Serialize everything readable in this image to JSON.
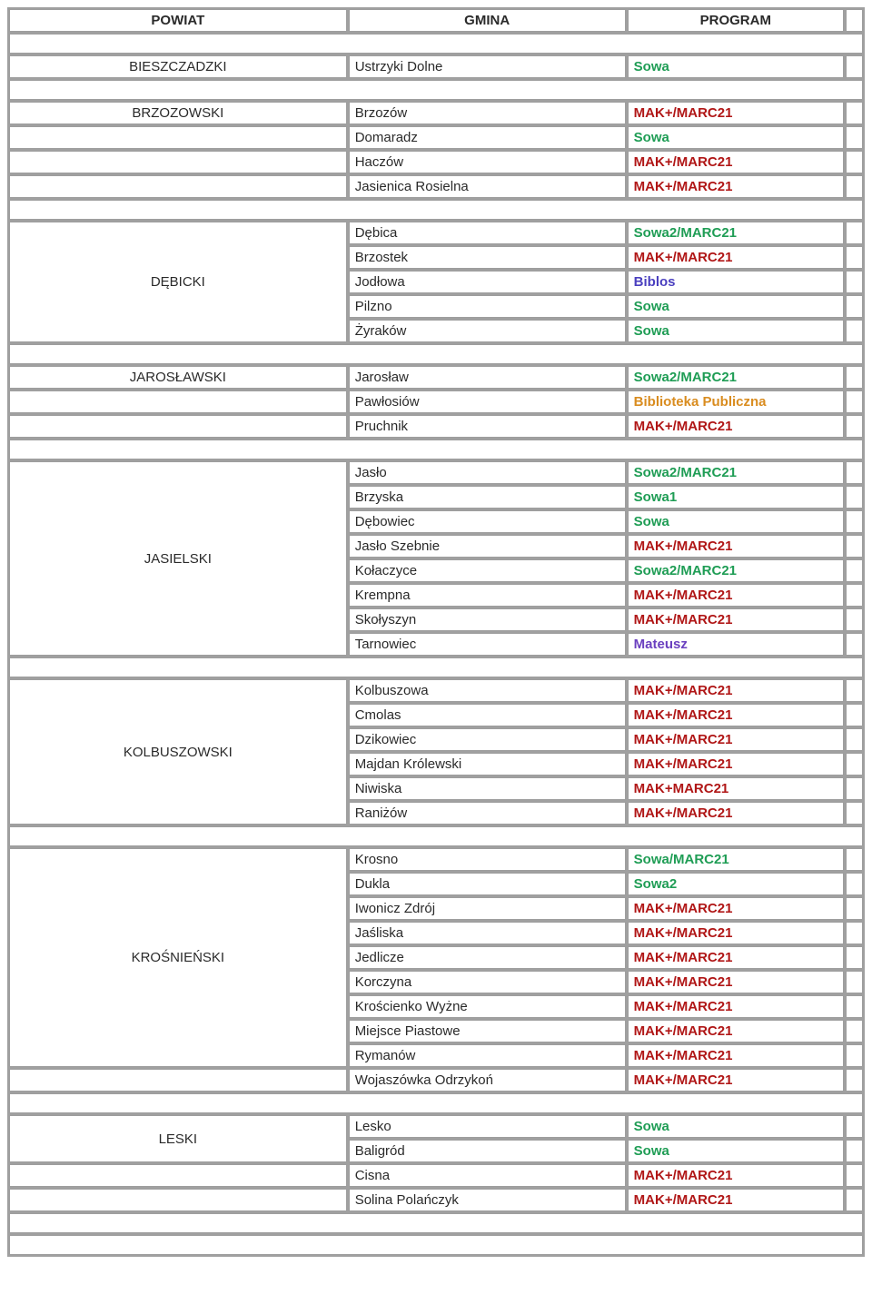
{
  "headers": {
    "powiat": "POWIAT",
    "gmina": "GMINA",
    "program": "PROGRAM"
  },
  "program_colors": {
    "sowa": "#1f9d55",
    "mak": "#b01616",
    "biblos": "#4a3fbf",
    "mateusz": "#6a3fbf",
    "biblioteka": "#d98c1f"
  },
  "groups": [
    {
      "powiat": "BIESZCZADZKI",
      "powiat_span": 1,
      "trailing_blank_powiat_rows": 0,
      "rows": [
        {
          "gmina": "Ustrzyki Dolne",
          "program": "Sowa",
          "color_key": "sowa"
        }
      ]
    },
    {
      "powiat": "BRZOZOWSKI",
      "powiat_span": 1,
      "trailing_blank_powiat_rows": 3,
      "rows": [
        {
          "gmina": "Brzozów",
          "program": "MAK+/MARC21",
          "color_key": "mak"
        },
        {
          "gmina": "Domaradz",
          "program": "Sowa",
          "color_key": "sowa"
        },
        {
          "gmina": "Haczów",
          "program": "MAK+/MARC21",
          "color_key": "mak"
        },
        {
          "gmina": "Jasienica Rosielna",
          "program": "MAK+/MARC21",
          "color_key": "mak"
        }
      ]
    },
    {
      "powiat": "DĘBICKI",
      "powiat_span": 5,
      "trailing_blank_powiat_rows": 0,
      "rows": [
        {
          "gmina": "Dębica",
          "program": "Sowa2/MARC21",
          "color_key": "sowa"
        },
        {
          "gmina": "Brzostek",
          "program": "MAK+/MARC21",
          "color_key": "mak"
        },
        {
          "gmina": "Jodłowa",
          "program": "Biblos",
          "color_key": "biblos"
        },
        {
          "gmina": "Pilzno",
          "program": "Sowa",
          "color_key": "sowa"
        },
        {
          "gmina": "Żyraków",
          "program": "Sowa",
          "color_key": "sowa"
        }
      ]
    },
    {
      "powiat": "JAROSŁAWSKI",
      "powiat_span": 1,
      "trailing_blank_powiat_rows": 2,
      "special_padding_rows": [
        1
      ],
      "rows": [
        {
          "gmina": "Jarosław",
          "program": "Sowa2/MARC21",
          "color_key": "sowa"
        },
        {
          "gmina": "Pawłosiów",
          "program": "Biblioteka Publiczna",
          "color_key": "biblioteka"
        },
        {
          "gmina": "Pruchnik",
          "program": "MAK+/MARC21",
          "color_key": "mak"
        }
      ]
    },
    {
      "powiat": "JASIELSKI",
      "powiat_span": 8,
      "trailing_blank_powiat_rows": 0,
      "rows": [
        {
          "gmina": "Jasło",
          "program": "Sowa2/MARC21",
          "color_key": "sowa"
        },
        {
          "gmina": "Brzyska",
          "program": "Sowa1",
          "color_key": "sowa"
        },
        {
          "gmina": "Dębowiec",
          "program": "Sowa",
          "color_key": "sowa"
        },
        {
          "gmina": "Jasło Szebnie",
          "program": "MAK+/MARC21",
          "color_key": "mak"
        },
        {
          "gmina": "Kołaczyce",
          "program": "Sowa2/MARC21",
          "color_key": "sowa"
        },
        {
          "gmina": "Krempna",
          "program": "MAK+/MARC21",
          "color_key": "mak"
        },
        {
          "gmina": "Skołyszyn",
          "program": "MAK+/MARC21",
          "color_key": "mak"
        },
        {
          "gmina": "Tarnowiec",
          "program": "Mateusz",
          "color_key": "mateusz"
        }
      ]
    },
    {
      "powiat": "KOLBUSZOWSKI",
      "powiat_span": 6,
      "trailing_blank_powiat_rows": 0,
      "rows": [
        {
          "gmina": "Kolbuszowa",
          "program": "MAK+/MARC21",
          "color_key": "mak"
        },
        {
          "gmina": "Cmolas",
          "program": "MAK+/MARC21",
          "color_key": "mak"
        },
        {
          "gmina": "Dzikowiec",
          "program": "MAK+/MARC21",
          "color_key": "mak"
        },
        {
          "gmina": "Majdan Królewski",
          "program": "MAK+/MARC21",
          "color_key": "mak"
        },
        {
          "gmina": "Niwiska",
          "program": "MAK+MARC21",
          "color_key": "mak"
        },
        {
          "gmina": "Raniżów",
          "program": "MAK+/MARC21",
          "color_key": "mak"
        }
      ]
    },
    {
      "powiat": "KROŚNIEŃSKI",
      "powiat_span": 9,
      "trailing_blank_powiat_rows": 1,
      "rows": [
        {
          "gmina": "Krosno",
          "program": "Sowa/MARC21",
          "color_key": "sowa"
        },
        {
          "gmina": "Dukla",
          "program": "Sowa2",
          "color_key": "sowa"
        },
        {
          "gmina": "Iwonicz Zdrój",
          "program": "MAK+/MARC21",
          "color_key": "mak"
        },
        {
          "gmina": "Jaśliska",
          "program": "MAK+/MARC21",
          "color_key": "mak"
        },
        {
          "gmina": "Jedlicze",
          "program": "MAK+/MARC21",
          "color_key": "mak"
        },
        {
          "gmina": "Korczyna",
          "program": "MAK+/MARC21",
          "color_key": "mak"
        },
        {
          "gmina": "Krościenko Wyżne",
          "program": "MAK+/MARC21",
          "color_key": "mak"
        },
        {
          "gmina": "Miejsce Piastowe",
          "program": "MAK+/MARC21",
          "color_key": "mak"
        },
        {
          "gmina": "Rymanów",
          "program": "MAK+/MARC21",
          "color_key": "mak"
        },
        {
          "gmina": "Wojaszówka Odrzykoń",
          "program": "MAK+/MARC21",
          "color_key": "mak"
        }
      ]
    },
    {
      "powiat": "LESKI",
      "powiat_span": 2,
      "trailing_blank_powiat_rows": 2,
      "rows": [
        {
          "gmina": "Lesko",
          "program": "Sowa",
          "color_key": "sowa"
        },
        {
          "gmina": "Baligród",
          "program": "Sowa",
          "color_key": "sowa"
        },
        {
          "gmina": "Cisna",
          "program": "MAK+/MARC21",
          "color_key": "mak"
        },
        {
          "gmina": "Solina Polańczyk",
          "program": "MAK+/MARC21",
          "color_key": "mak"
        }
      ]
    }
  ]
}
